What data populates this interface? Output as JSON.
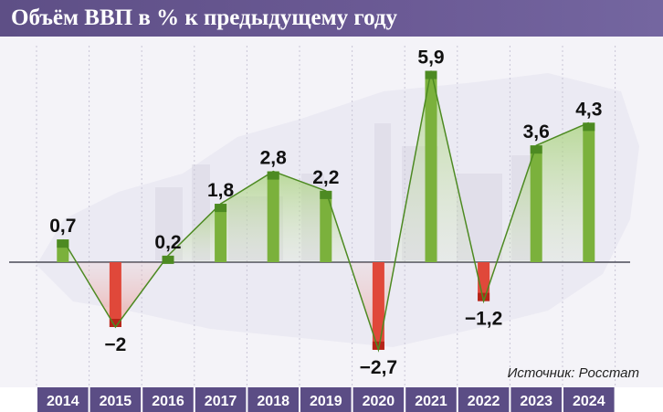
{
  "title": "Объём ВВП в % к предыдущему году",
  "source": "Источник: Росстат",
  "colors": {
    "header": "#5e4f86",
    "positive": "#7bb13c",
    "positive_dark": "#4d8a22",
    "negative": "#e0483a",
    "negative_dark": "#b52418",
    "axis_band": "#5b4d85",
    "axis_text": "#ffffff"
  },
  "chart_data": {
    "type": "bar",
    "categories": [
      "2014",
      "2015",
      "2016",
      "2017",
      "2018",
      "2019",
      "2020",
      "2021",
      "2022",
      "2023",
      "2024"
    ],
    "values": [
      0.7,
      -2,
      0.2,
      1.8,
      2.8,
      2.2,
      -2.7,
      5.9,
      -1.2,
      3.6,
      4.3
    ],
    "labels": [
      "0,7",
      "−2",
      "0,2",
      "1,8",
      "2,8",
      "2,2",
      "−2,7",
      "5,9",
      "−1,2",
      "3,6",
      "4,3"
    ],
    "overlay": "line connecting bar tops with shaded area to zero line",
    "ylim": [
      -3.4,
      6.2
    ],
    "grid": true
  }
}
